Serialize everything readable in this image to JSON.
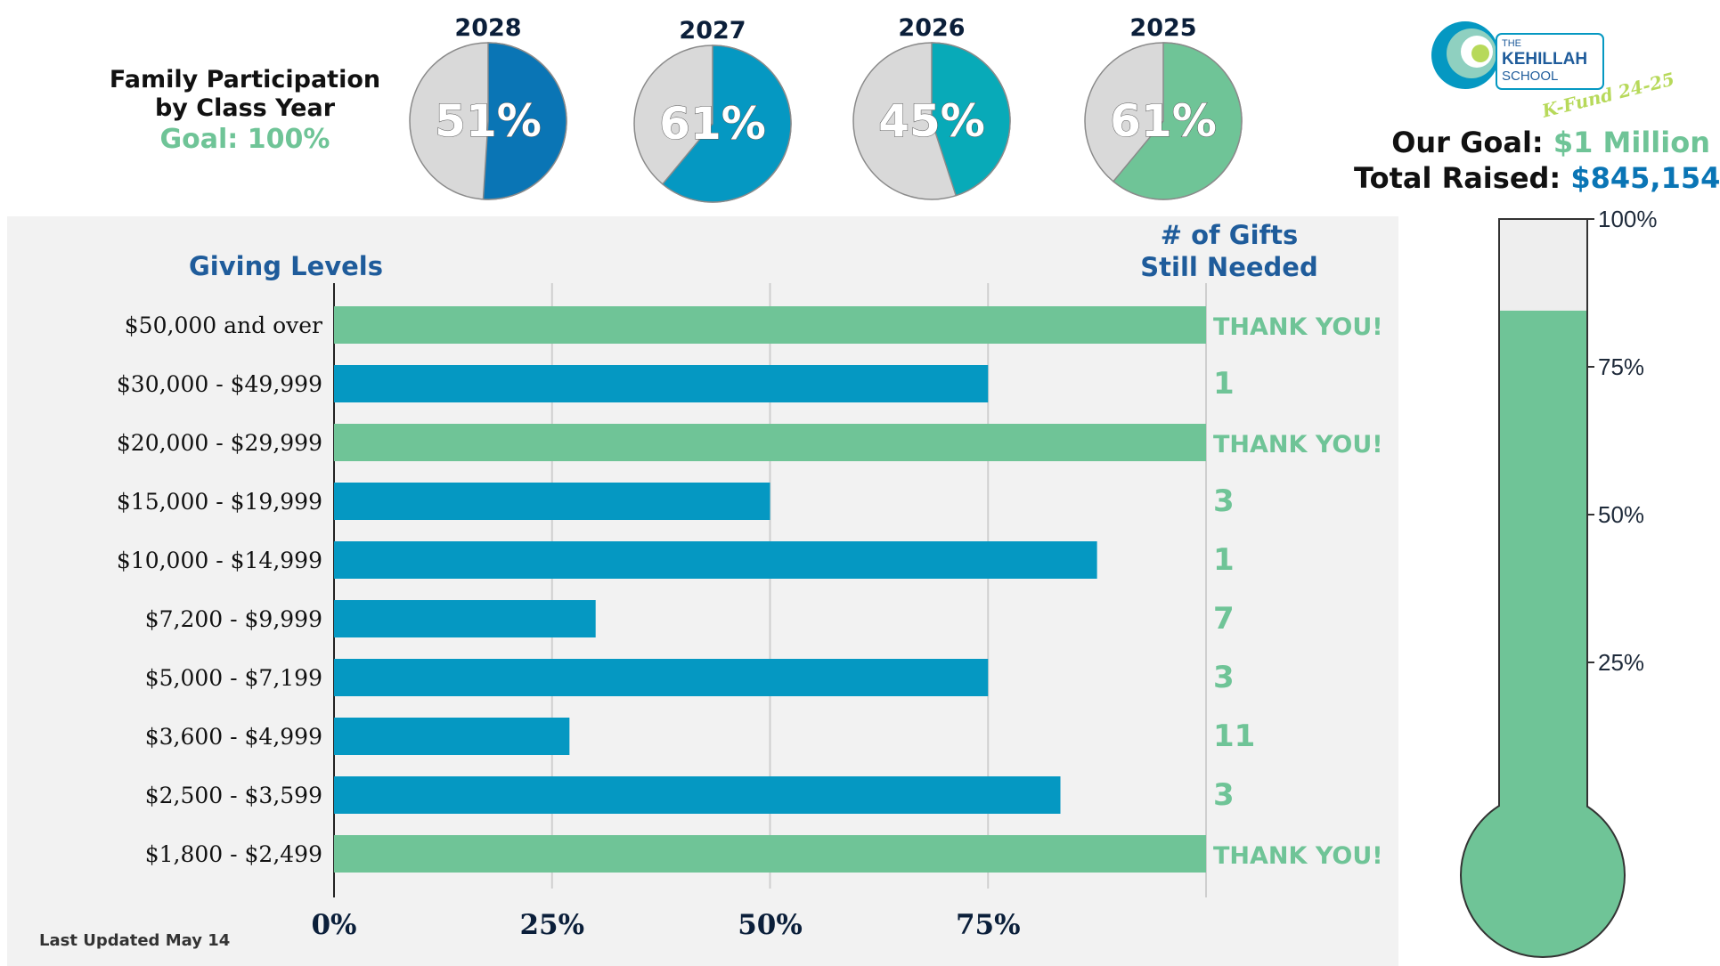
{
  "participation": {
    "title_line1": "Family Participation",
    "title_line2": "by Class Year",
    "goal": "Goal: 100%"
  },
  "fund": {
    "goal_label": "Our Goal:",
    "goal_value": "$1 Million",
    "raised_label": "Total Raised:",
    "raised_value": "$845,154"
  },
  "logo": {
    "line1": "THE",
    "line2": "KEHILLAH",
    "line3": "SCHOOL",
    "script": "K-Fund 24-25"
  },
  "headers": {
    "giving_levels": "Giving Levels",
    "gifts_line1": "# of Gifts",
    "gifts_line2": "Still Needed"
  },
  "last_updated": "Last Updated May 14",
  "colors": {
    "pie_2028": "#0a75b5",
    "pie_2027": "#0598c2",
    "pie_2026": "#08aab8",
    "pie_2025": "#6fc497",
    "pie_remainder": "#d9d9d9",
    "bar_met": "#6fc497",
    "bar_open": "#0598c2",
    "thermo_fill": "#6fc497",
    "thermo_empty": "#eeeeee",
    "header_blue": "#1f5c9b",
    "green_text": "#6fc497",
    "blue_text": "#0a75b5"
  },
  "chart_data": [
    {
      "type": "pie",
      "title": "2028",
      "label": "51%",
      "values": [
        51,
        49
      ]
    },
    {
      "type": "pie",
      "title": "2027",
      "label": "61%",
      "values": [
        61,
        39
      ]
    },
    {
      "type": "pie",
      "title": "2026",
      "label": "45%",
      "values": [
        45,
        55
      ]
    },
    {
      "type": "pie",
      "title": "2025",
      "label": "61%",
      "values": [
        61,
        39
      ]
    },
    {
      "type": "bar",
      "orientation": "horizontal",
      "categories": [
        "$50,000 and over",
        "$30,000 - $49,999",
        "$20,000 - $29,999",
        "$15,000 - $19,999",
        "$10,000 - $14,999",
        "$7,200 - $9,999",
        "$5,000 - $7,199",
        "$3,600 - $4,999",
        "$2,500 - $3,599",
        "$1,800 - $2,499"
      ],
      "values": [
        100,
        75,
        100,
        50,
        87.5,
        30,
        75,
        27,
        83.3,
        100
      ],
      "gifts_needed": [
        "THANK YOU!",
        "1",
        "THANK YOU!",
        "3",
        "1",
        "7",
        "3",
        "11",
        "3",
        "THANK YOU!"
      ],
      "xticks": [
        "0%",
        "25%",
        "50%",
        "75%"
      ],
      "xlim": [
        0,
        100
      ],
      "grid": true
    },
    {
      "type": "bar",
      "subtype": "thermometer",
      "value": 84.5,
      "yticks": [
        "100%",
        "75%",
        "50%",
        "25%"
      ],
      "ylim": [
        0,
        100
      ]
    }
  ]
}
